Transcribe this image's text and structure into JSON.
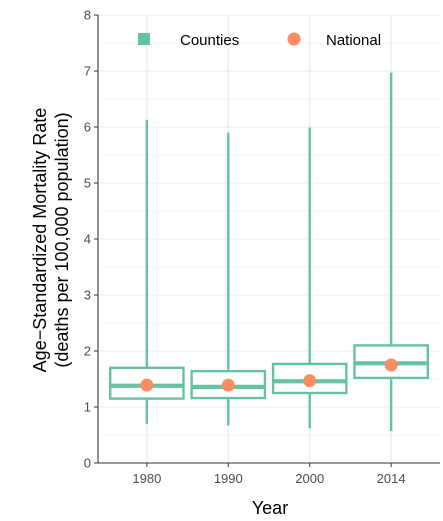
{
  "chart_data": {
    "type": "boxplot",
    "xlabel": "Year",
    "ylabel_lines": [
      "Age−Standardized Mortality Rate",
      "(deaths per 100,000 population)"
    ],
    "ylim": [
      0,
      8
    ],
    "yticks": [
      0,
      1,
      2,
      3,
      4,
      5,
      6,
      7,
      8
    ],
    "categories": [
      "1980",
      "1990",
      "2000",
      "2014"
    ],
    "grid": true,
    "legend_position": "top",
    "series": [
      {
        "name": "Counties",
        "color": "#66c2a5",
        "boxes": [
          {
            "min": 0.7,
            "q1": 1.15,
            "median": 1.38,
            "q3": 1.7,
            "max": 6.13
          },
          {
            "min": 0.67,
            "q1": 1.16,
            "median": 1.36,
            "q3": 1.64,
            "max": 5.9
          },
          {
            "min": 0.62,
            "q1": 1.25,
            "median": 1.46,
            "q3": 1.77,
            "max": 5.99
          },
          {
            "min": 0.57,
            "q1": 1.52,
            "median": 1.78,
            "q3": 2.1,
            "max": 6.97
          }
        ]
      },
      {
        "name": "National",
        "color": "#fc8d62",
        "values": [
          1.39,
          1.39,
          1.47,
          1.75
        ]
      }
    ]
  }
}
